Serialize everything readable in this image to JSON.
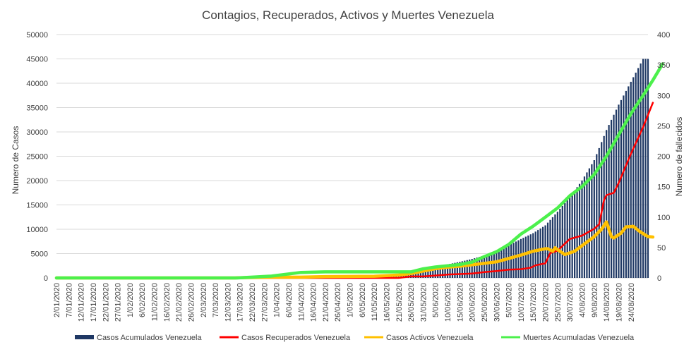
{
  "chart_data": {
    "type": "bar+line",
    "title": "Contagios, Recuperados, Activos y Muertes Venezuela",
    "ylabel": "Numero  de Casos",
    "y2label": "Numero  de fallecidos",
    "ylim": [
      0,
      50000
    ],
    "y2lim": [
      0,
      400
    ],
    "yticks": [
      "0",
      "5000",
      "10000",
      "15000",
      "20000",
      "25000",
      "30000",
      "35000",
      "40000",
      "45000",
      "50000"
    ],
    "y2ticks": [
      "0",
      "50",
      "100",
      "150",
      "200",
      "250",
      "300",
      "350",
      "400"
    ],
    "xticks": [
      "2/01/2020",
      "7/01/2020",
      "12/01/2020",
      "17/01/2020",
      "22/01/2020",
      "27/01/2020",
      "1/02/2020",
      "6/02/2020",
      "11/02/2020",
      "16/02/2020",
      "21/02/2020",
      "26/02/2020",
      "2/03/2020",
      "7/03/2020",
      "12/03/2020",
      "17/03/2020",
      "22/03/2020",
      "27/03/2020",
      "1/04/2020",
      "6/04/2020",
      "11/04/2020",
      "16/04/2020",
      "21/04/2020",
      "26/04/2020",
      "1/05/2020",
      "6/05/2020",
      "11/05/2020",
      "16/05/2020",
      "21/05/2020",
      "26/05/2020",
      "31/05/2020",
      "5/06/2020",
      "10/06/2020",
      "15/06/2020",
      "20/06/2020",
      "25/06/2020",
      "30/06/2020",
      "5/07/2020",
      "10/07/2020",
      "15/07/2020",
      "20/07/2020",
      "25/07/2020",
      "30/07/2020",
      "4/08/2020",
      "9/08/2020",
      "14/08/2020",
      "19/08/2020",
      "24/08/2020"
    ],
    "x_start": "2/01/2020",
    "x_end": "30/08/2020",
    "series": [
      {
        "name": "Casos Acumulados Venezuela",
        "type": "bar",
        "axis": "left",
        "color": "#1f3864",
        "points": [
          [
            0,
            0
          ],
          [
            73,
            0
          ],
          [
            74,
            33
          ],
          [
            88,
            150
          ],
          [
            100,
            170
          ],
          [
            110,
            310
          ],
          [
            120,
            330
          ],
          [
            130,
            450
          ],
          [
            140,
            700
          ],
          [
            145,
            1000
          ],
          [
            150,
            1500
          ],
          [
            155,
            2300
          ],
          [
            160,
            2800
          ],
          [
            165,
            3300
          ],
          [
            170,
            3900
          ],
          [
            175,
            4600
          ],
          [
            180,
            5500
          ],
          [
            185,
            6700
          ],
          [
            190,
            8000
          ],
          [
            195,
            9200
          ],
          [
            200,
            10800
          ],
          [
            205,
            13600
          ],
          [
            210,
            16600
          ],
          [
            215,
            20000
          ],
          [
            220,
            24200
          ],
          [
            225,
            30400
          ],
          [
            230,
            35600
          ],
          [
            235,
            40300
          ],
          [
            240,
            45000
          ]
        ]
      },
      {
        "name": "Casos Recuperados Venezuela",
        "type": "line",
        "axis": "left",
        "color": "#ff0000",
        "points": [
          [
            0,
            0
          ],
          [
            140,
            0
          ],
          [
            145,
            300
          ],
          [
            150,
            300
          ],
          [
            155,
            500
          ],
          [
            160,
            700
          ],
          [
            165,
            800
          ],
          [
            170,
            900
          ],
          [
            175,
            1200
          ],
          [
            180,
            1400
          ],
          [
            185,
            1700
          ],
          [
            190,
            1800
          ],
          [
            194,
            2100
          ],
          [
            196,
            2600
          ],
          [
            200,
            3000
          ],
          [
            202,
            5100
          ],
          [
            205,
            5600
          ],
          [
            210,
            8000
          ],
          [
            215,
            8700
          ],
          [
            220,
            10100
          ],
          [
            222,
            11000
          ],
          [
            224,
            16000
          ],
          [
            225,
            17000
          ],
          [
            228,
            17500
          ],
          [
            230,
            19500
          ],
          [
            235,
            25500
          ],
          [
            240,
            31000
          ],
          [
            244,
            36000
          ]
        ]
      },
      {
        "name": "Casos Activos Venezuela",
        "type": "line",
        "axis": "left",
        "color": "#ffc000",
        "points": [
          [
            0,
            0
          ],
          [
            73,
            0
          ],
          [
            74,
            33
          ],
          [
            88,
            150
          ],
          [
            100,
            160
          ],
          [
            110,
            280
          ],
          [
            120,
            300
          ],
          [
            130,
            350
          ],
          [
            140,
            600
          ],
          [
            145,
            900
          ],
          [
            150,
            1400
          ],
          [
            155,
            1900
          ],
          [
            160,
            2200
          ],
          [
            165,
            2400
          ],
          [
            170,
            2700
          ],
          [
            175,
            3000
          ],
          [
            180,
            3300
          ],
          [
            185,
            4000
          ],
          [
            190,
            4700
          ],
          [
            195,
            5500
          ],
          [
            200,
            6000
          ],
          [
            201,
            6000
          ],
          [
            203,
            5500
          ],
          [
            204,
            6200
          ],
          [
            205,
            5800
          ],
          [
            208,
            4800
          ],
          [
            212,
            5500
          ],
          [
            216,
            7000
          ],
          [
            220,
            8500
          ],
          [
            223,
            10000
          ],
          [
            225,
            11500
          ],
          [
            227,
            8500
          ],
          [
            228,
            8200
          ],
          [
            231,
            9200
          ],
          [
            233,
            10500
          ],
          [
            236,
            10600
          ],
          [
            239,
            9400
          ],
          [
            242,
            8500
          ],
          [
            244,
            8400
          ]
        ]
      },
      {
        "name": "Muertes Acumuladas Venezuela",
        "type": "line",
        "axis": "right",
        "color": "#4cf04c",
        "points": [
          [
            0,
            0
          ],
          [
            74,
            0
          ],
          [
            88,
            3
          ],
          [
            100,
            9
          ],
          [
            110,
            10
          ],
          [
            125,
            10
          ],
          [
            145,
            10
          ],
          [
            150,
            15
          ],
          [
            155,
            18
          ],
          [
            160,
            20
          ],
          [
            165,
            22
          ],
          [
            170,
            26
          ],
          [
            175,
            35
          ],
          [
            180,
            43
          ],
          [
            185,
            55
          ],
          [
            190,
            72
          ],
          [
            195,
            85
          ],
          [
            200,
            100
          ],
          [
            205,
            115
          ],
          [
            210,
            135
          ],
          [
            215,
            150
          ],
          [
            220,
            170
          ],
          [
            225,
            200
          ],
          [
            230,
            235
          ],
          [
            235,
            270
          ],
          [
            240,
            300
          ],
          [
            244,
            325
          ],
          [
            248,
            352
          ]
        ]
      }
    ]
  },
  "legend": [
    {
      "label": "Casos Acumulados Venezuela",
      "color": "#1f3864",
      "marker": "bar"
    },
    {
      "label": "Casos Recuperados Venezuela",
      "color": "#ff0000",
      "marker": "line"
    },
    {
      "label": "Casos Activos Venezuela",
      "color": "#ffc000",
      "marker": "line"
    },
    {
      "label": "Muertes Acumuladas Venezuela",
      "color": "#4cf04c",
      "marker": "line"
    }
  ]
}
